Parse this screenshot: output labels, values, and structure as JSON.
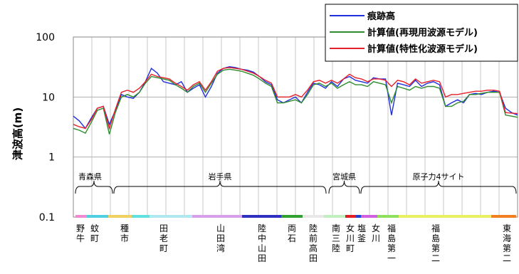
{
  "chart_data": {
    "type": "line",
    "y_scale": "log",
    "ylim": [
      0.1,
      100
    ],
    "yticks": [
      "0.1",
      "1",
      "10",
      "100"
    ],
    "ylabel": "津波高(m)",
    "xlabel": "",
    "grid": true,
    "legend_position": "top-right",
    "series": [
      {
        "name": "痕跡高",
        "color": "#1f2fe0",
        "values": [
          4.8,
          4.0,
          3.0,
          4.5,
          6.5,
          7.0,
          3.5,
          6.0,
          11,
          10,
          9.5,
          12,
          18,
          30,
          25,
          18,
          17,
          16,
          18,
          12,
          14,
          16,
          10,
          15,
          25,
          30,
          32,
          31,
          29,
          28,
          26,
          22,
          18,
          16,
          9,
          8,
          9,
          10,
          8,
          12,
          17,
          16,
          14,
          18,
          15,
          20,
          22,
          19,
          18,
          17,
          21,
          20,
          20,
          5,
          17,
          16,
          15,
          19,
          15,
          17,
          18,
          16,
          7,
          8,
          9,
          8,
          11,
          11.5,
          11,
          12,
          12.5,
          12,
          6.5,
          5.5,
          5.0
        ]
      },
      {
        "name": "計算値(再現用波源モデル)",
        "color": "#2e8b2e",
        "values": [
          3.0,
          2.8,
          2.5,
          3.8,
          6.0,
          6.5,
          2.4,
          5.5,
          10,
          11,
          10,
          12,
          17,
          22,
          21,
          20,
          19,
          16,
          14,
          12,
          15,
          17,
          12,
          17,
          24,
          28,
          29,
          28,
          27,
          25,
          23,
          20,
          17,
          15,
          8,
          8,
          8.5,
          9,
          8,
          11,
          16,
          17,
          15,
          17,
          14,
          16,
          18,
          16,
          16,
          15,
          18,
          17,
          16,
          8,
          15,
          14,
          13,
          15,
          14,
          15,
          15,
          14,
          7,
          7,
          8,
          8.5,
          11,
          11,
          11.5,
          12,
          12,
          12,
          5.0,
          4.8,
          4.6
        ]
      },
      {
        "name": "計算値(特性化波源モデル)",
        "color": "#e8202a",
        "values": [
          3.5,
          3.2,
          3.0,
          4.2,
          6.5,
          7.0,
          3.0,
          6.2,
          12,
          13,
          12,
          14,
          18,
          24,
          22,
          21,
          20,
          17,
          15,
          13,
          16,
          18,
          13,
          18,
          27,
          30,
          31,
          30,
          29,
          27,
          25,
          22,
          19,
          17,
          10,
          10,
          10,
          11,
          10,
          13,
          18,
          19,
          17,
          19,
          17,
          20,
          24,
          21,
          20,
          18,
          20,
          20,
          19,
          15,
          19,
          18,
          16,
          20,
          17,
          18,
          19,
          18,
          10,
          11,
          11,
          11.5,
          12,
          12.5,
          12.5,
          13,
          13,
          12.5,
          5.5,
          5.4,
          5.3
        ]
      }
    ],
    "region_labels": [
      "青森県",
      "岩手県",
      "宮城県",
      "原子力4サイト"
    ],
    "place_labels": [
      "野牛",
      "蚊町",
      "種市",
      "田老町",
      "山田湾",
      "陸中山田",
      "両石",
      "陸前高田",
      "南三陸",
      "女川町",
      "塩釜",
      "女川",
      "福島第一",
      "福島第二",
      "東海第二"
    ],
    "segment_colors": [
      "#f08ad0",
      "#4fd0e0",
      "#f0d060",
      "#60e0e0",
      "#b0e8f0",
      "#d8a0e8",
      "#3030c0",
      "#30a030",
      "#e8e8e8",
      "#c0f0c0",
      "#e02020",
      "#2040d0",
      "#d060e0",
      "#90e060",
      "#e8f060",
      "#f08020"
    ]
  }
}
